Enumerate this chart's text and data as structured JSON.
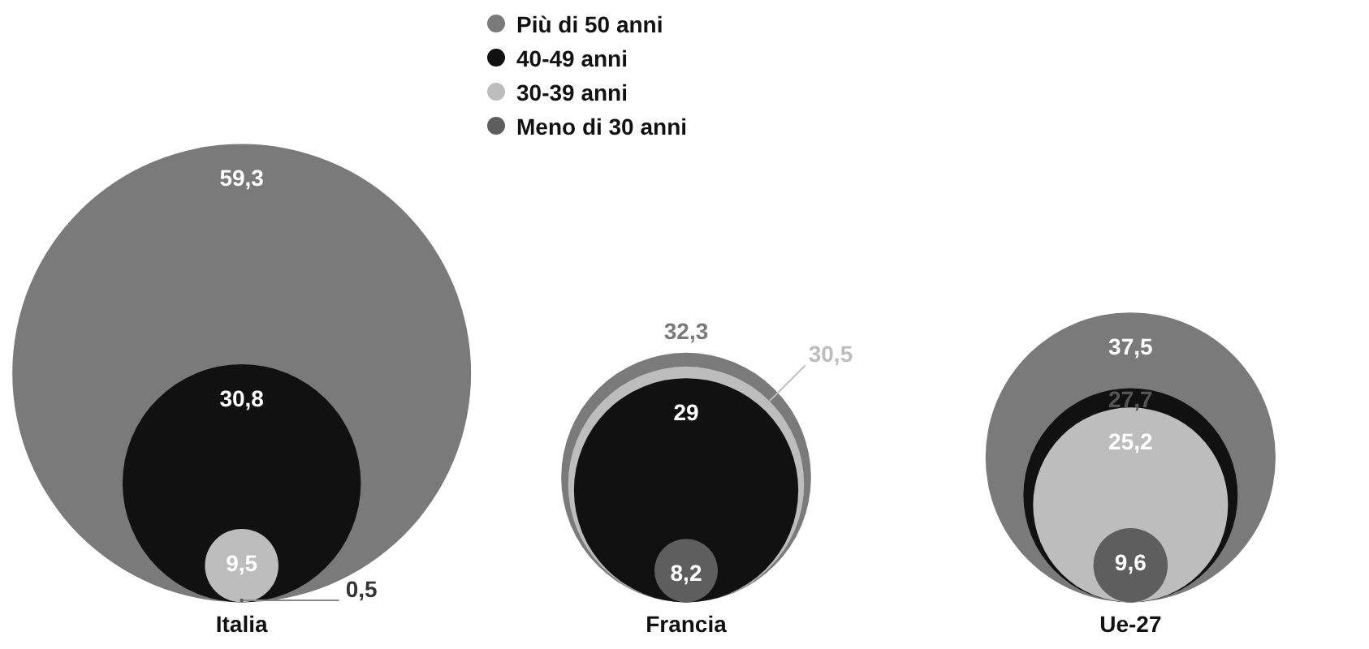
{
  "chart_data": {
    "type": "other",
    "categories": [
      "Italia",
      "Francia",
      "Ue-27"
    ],
    "legend": "top",
    "series": [
      {
        "name": "Più di 50 anni",
        "color": "#7a7a7a",
        "values": [
          59.3,
          32.3,
          37.5
        ],
        "value_labels": [
          "59,3",
          "32,3",
          "37,5"
        ]
      },
      {
        "name": "40-49 anni",
        "color": "#111111",
        "values": [
          30.8,
          29,
          27.7
        ],
        "value_labels": [
          "30,8",
          "29",
          "27,7"
        ]
      },
      {
        "name": "30-39 anni",
        "color": "#bdbdbd",
        "values": [
          9.5,
          30.5,
          25.2
        ],
        "value_labels": [
          "9,5",
          "30,5",
          "25,2"
        ]
      },
      {
        "name": "Meno di 30 anni",
        "color": "#5e5e5e",
        "values": [
          0.5,
          8.2,
          9.6
        ],
        "value_labels": [
          "0,5",
          "8,2",
          "9,6"
        ]
      }
    ]
  }
}
